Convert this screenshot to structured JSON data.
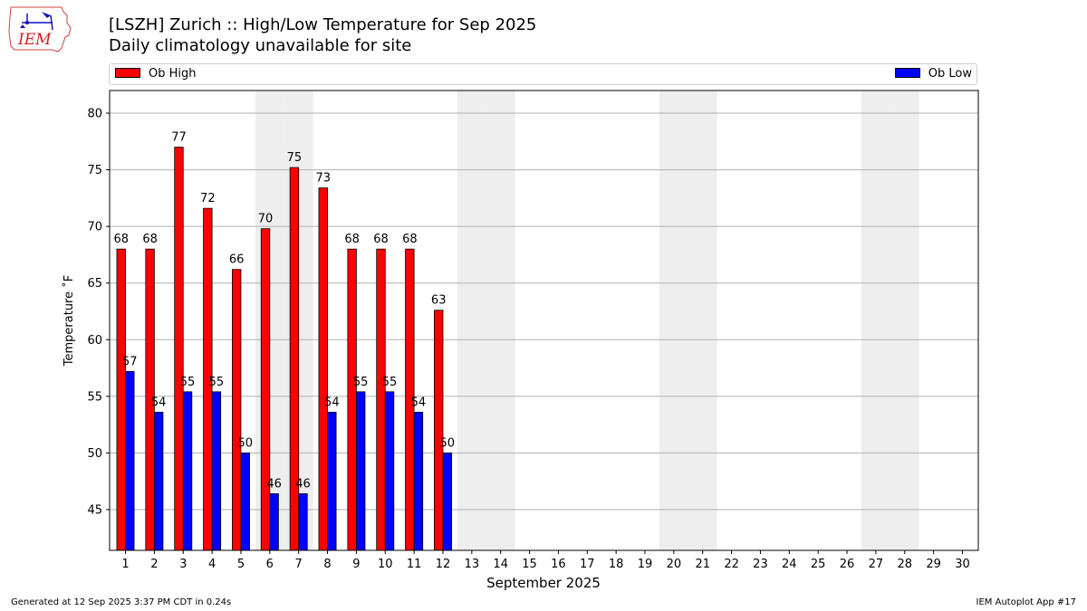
{
  "title": "[LSZH] Zurich :: High/Low Temperature for Sep 2025",
  "subtitle": "Daily climatology unavailable for site",
  "logo_text": "IEM",
  "footer_left": "Generated at 12 Sep 2025 3:37 PM CDT in 0.24s",
  "footer_right": "IEM Autoplot App #17",
  "chart_data": {
    "type": "bar",
    "xlabel": "September 2025",
    "ylabel": "Temperature ˚F",
    "ylim": [
      41.4,
      82
    ],
    "yticks": [
      45,
      50,
      55,
      60,
      65,
      70,
      75,
      80
    ],
    "grid": "horizontal",
    "legend_placement": "top, above plot",
    "weekend_shading": [
      6,
      7,
      13,
      14,
      20,
      21,
      27,
      28
    ],
    "categories": [
      1,
      2,
      3,
      4,
      5,
      6,
      7,
      8,
      9,
      10,
      11,
      12,
      13,
      14,
      15,
      16,
      17,
      18,
      19,
      20,
      21,
      22,
      23,
      24,
      25,
      26,
      27,
      28,
      29,
      30
    ],
    "series": [
      {
        "name": "Ob High",
        "color": "#ff0000",
        "values": [
          68,
          68,
          77,
          71.6,
          66.2,
          69.8,
          75.2,
          73.4,
          68,
          68,
          68,
          62.6,
          null,
          null,
          null,
          null,
          null,
          null,
          null,
          null,
          null,
          null,
          null,
          null,
          null,
          null,
          null,
          null,
          null,
          null
        ],
        "labels": [
          "68",
          "68",
          "77",
          "72",
          "66",
          "70",
          "75",
          "73",
          "68",
          "68",
          "68",
          "63"
        ]
      },
      {
        "name": "Ob Low",
        "color": "#0000ff",
        "values": [
          57.2,
          53.6,
          55.4,
          55.4,
          50,
          46.4,
          46.4,
          53.6,
          55.4,
          55.4,
          53.6,
          50,
          null,
          null,
          null,
          null,
          null,
          null,
          null,
          null,
          null,
          null,
          null,
          null,
          null,
          null,
          null,
          null,
          null,
          null
        ],
        "labels": [
          "57",
          "54",
          "55",
          "55",
          "50",
          "46",
          "46",
          "54",
          "55",
          "55",
          "54",
          "50"
        ]
      }
    ]
  }
}
